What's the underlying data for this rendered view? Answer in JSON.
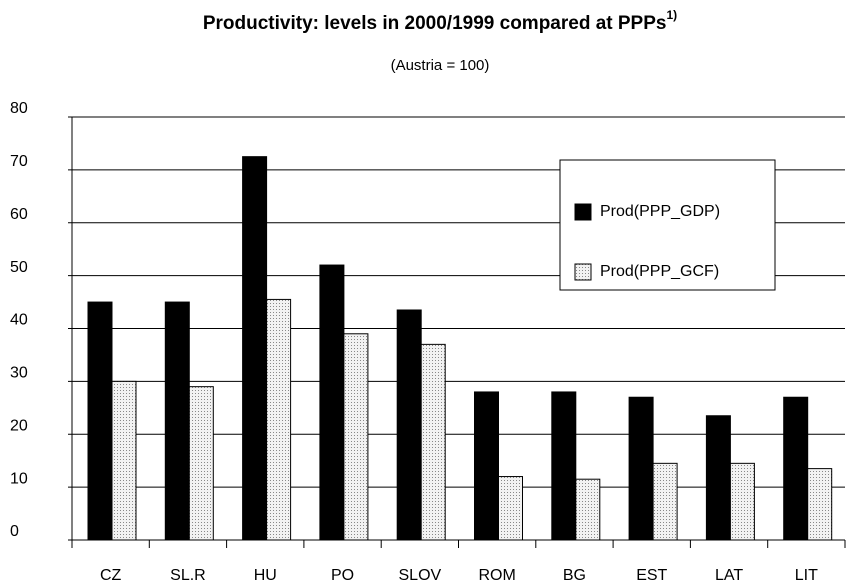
{
  "chart_data": {
    "type": "bar",
    "title": "Productivity: levels in 2000/1999 compared at PPPs",
    "title_note": "1)",
    "subtitle": "(Austria = 100)",
    "categories": [
      "CZ",
      "SL.R",
      "HU",
      "PO",
      "SLOV",
      "ROM",
      "BG",
      "EST",
      "LAT",
      "LIT"
    ],
    "series": [
      {
        "name": "Prod(PPP_GDP)",
        "color": "#000000",
        "values": [
          45,
          45,
          72.5,
          52,
          43.5,
          28,
          28,
          27,
          23.5,
          27
        ]
      },
      {
        "name": "Prod(PPP_GCF)",
        "color": "#d9d9d9",
        "values": [
          30,
          29,
          45.5,
          39,
          37,
          12,
          11.5,
          14.5,
          14.5,
          13.5
        ]
      }
    ],
    "ylim": [
      0,
      80
    ],
    "yticks": [
      0,
      10,
      20,
      30,
      40,
      50,
      60,
      70,
      80
    ],
    "grid": true,
    "legend": "right"
  }
}
